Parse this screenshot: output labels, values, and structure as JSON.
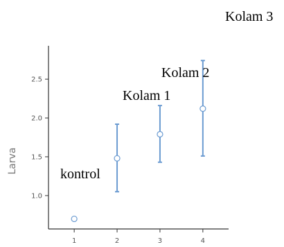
{
  "chart_data": {
    "type": "scatter",
    "ylabel": "Larva",
    "xlabel": "",
    "x_ticks": [
      "1",
      "2",
      "3",
      "4"
    ],
    "y_ticks": [
      "1.0",
      "1.5",
      "2.0",
      "2.5"
    ],
    "xlim": [
      0.4,
      4.6
    ],
    "ylim": [
      0.57,
      2.93
    ],
    "grid": false,
    "colors": {
      "series": "#6b9bd1",
      "axis": "#333333"
    },
    "points": [
      {
        "x": 1,
        "y": 0.7,
        "lower": 0.7,
        "upper": 0.7
      },
      {
        "x": 2,
        "y": 1.48,
        "lower": 1.05,
        "upper": 1.92
      },
      {
        "x": 3,
        "y": 1.79,
        "lower": 1.43,
        "upper": 2.16
      },
      {
        "x": 4,
        "y": 2.12,
        "lower": 1.51,
        "upper": 2.74
      }
    ],
    "annotations": [
      {
        "text": "kontrol"
      },
      {
        "text": "Kolam 1"
      },
      {
        "text": "Kolam 2"
      },
      {
        "text": "Kolam 3"
      }
    ]
  }
}
